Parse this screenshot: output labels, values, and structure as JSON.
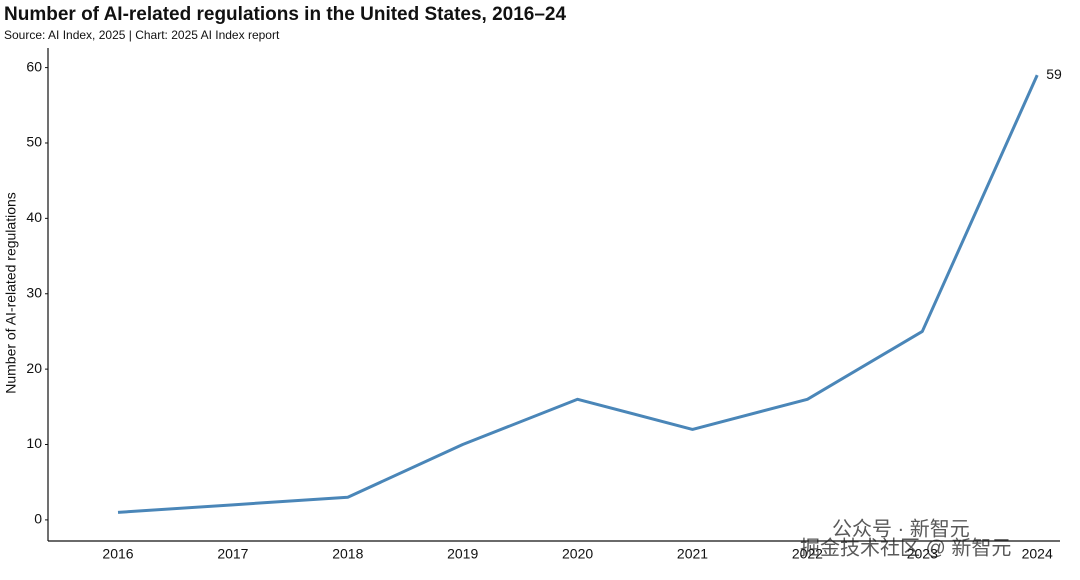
{
  "chart_data": {
    "type": "line",
    "title": "Number of AI-related regulations in the United States, 2016–24",
    "subtitle": "Source: AI Index, 2025 | Chart: 2025 AI Index report",
    "y_label": "Number of AI-related regulations",
    "categories": [
      "2016",
      "2017",
      "2018",
      "2019",
      "2020",
      "2021",
      "2022",
      "2023",
      "2024"
    ],
    "series": [
      {
        "name": "AI-related regulations",
        "color": "#4a86b8",
        "values": [
          1,
          2,
          3,
          10,
          16,
          12,
          16,
          25,
          59
        ]
      }
    ],
    "end_label": true,
    "ylim": [
      -2.8,
      62.6
    ],
    "yticks": [
      0,
      10,
      20,
      30,
      40,
      50,
      60
    ],
    "grid": false
  },
  "watermark": [
    "公众号 · 新智元",
    "掘金技术社区 @ 新智元"
  ]
}
